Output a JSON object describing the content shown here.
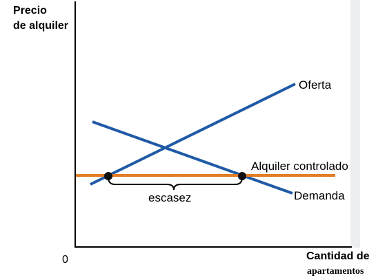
{
  "axes": {
    "y_label_line1": "Precio",
    "y_label_line2": "de alquiler",
    "x_label_line1": "Cantidad de",
    "x_label_line2": "apartamentos",
    "origin": "0"
  },
  "curves": {
    "supply_label": "Oferta",
    "demand_label": "Demanda",
    "control_label": "Alquiler controlado",
    "shortage_label": "escasez"
  },
  "colors": {
    "curves": "#1f5aa6",
    "control_line": "#e27d28",
    "axes": "#000000",
    "points": "#111111",
    "page_background": "#ffffff",
    "axis_shadow": "#d8dce0"
  }
}
